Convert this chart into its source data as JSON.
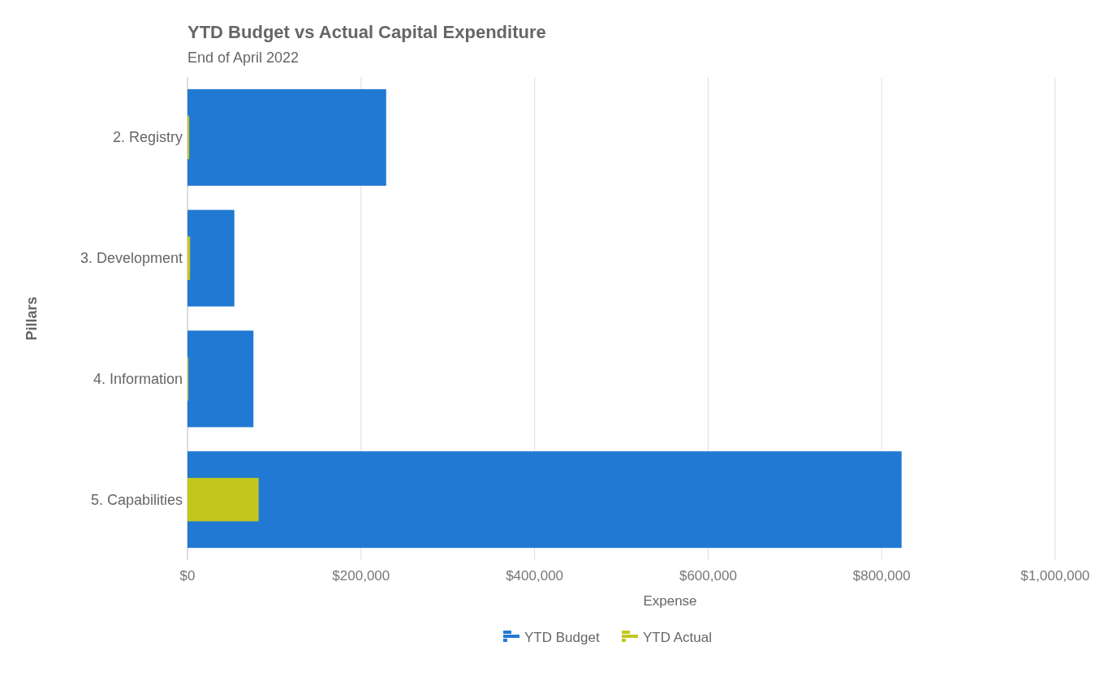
{
  "chart_data": {
    "type": "bar",
    "orientation": "horizontal",
    "title": "YTD Budget vs Actual Capital Expenditure",
    "subtitle": "End of April 2022",
    "xlabel": "Expense",
    "ylabel": "Pillars",
    "categories": [
      "2. Registry",
      "3. Development",
      "4. Information",
      "5. Capabilities"
    ],
    "series": [
      {
        "name": "YTD Budget",
        "color": "#2279d3",
        "values": [
          229000,
          54000,
          76000,
          823000
        ]
      },
      {
        "name": "YTD Actual",
        "color": "#c3c61d",
        "values": [
          2000,
          3000,
          1000,
          82000
        ]
      }
    ],
    "xlim": [
      0,
      1000000
    ],
    "xticks": [
      {
        "value": 0,
        "label": "$0"
      },
      {
        "value": 200000,
        "label": "$200,000"
      },
      {
        "value": 400000,
        "label": "$400,000"
      },
      {
        "value": 600000,
        "label": "$600,000"
      },
      {
        "value": 800000,
        "label": "$800,000"
      },
      {
        "value": 1000000,
        "label": "$1,000,000"
      }
    ],
    "grid": "x",
    "legend": "bottom"
  }
}
